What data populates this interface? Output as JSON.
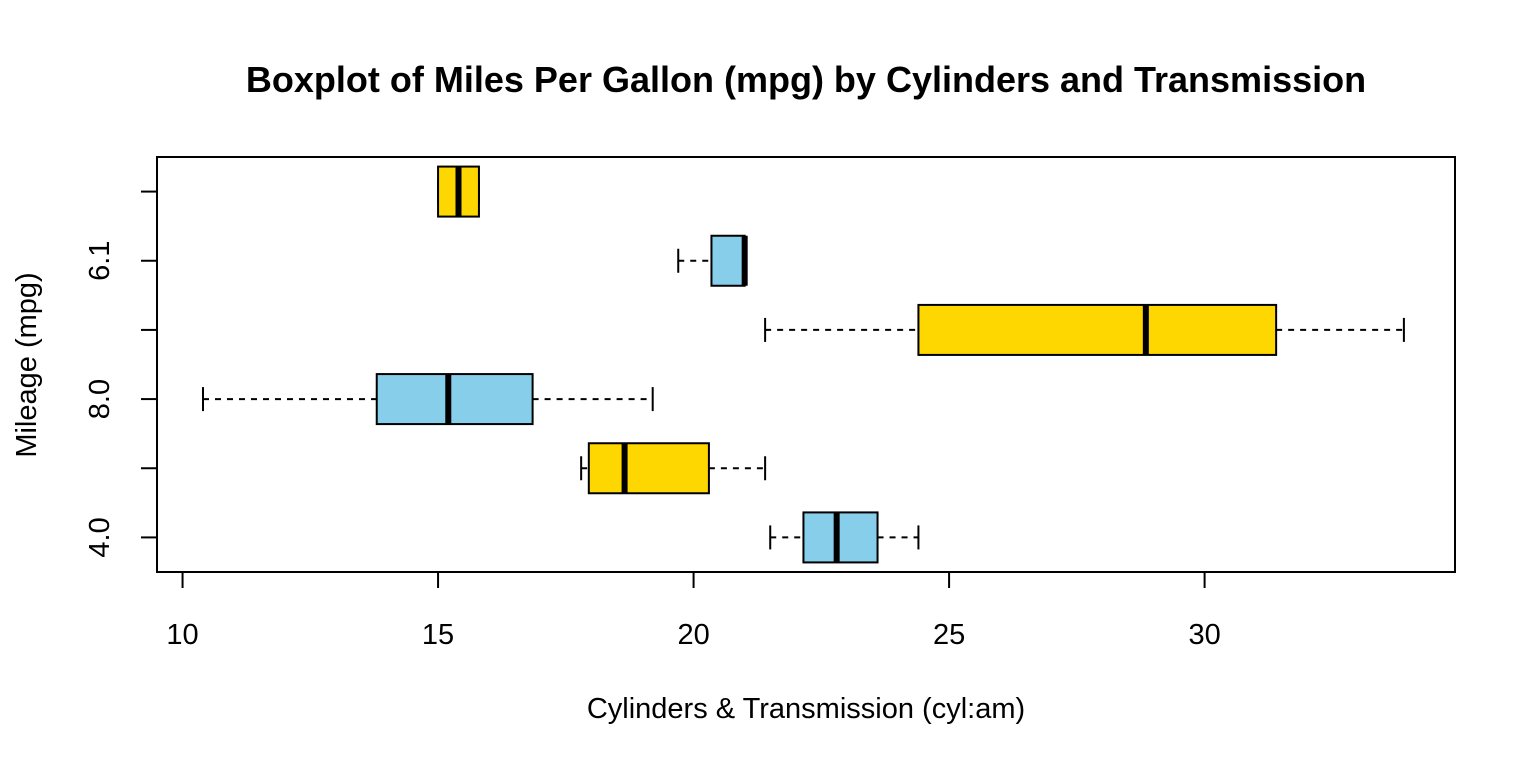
{
  "chart_data": {
    "type": "boxplot",
    "orientation": "horizontal",
    "title": "Boxplot of Miles Per Gallon (mpg) by Cylinders and Transmission",
    "xlabel": "Cylinders & Transmission (cyl:am)",
    "ylabel": "Mileage (mpg)",
    "xlim": [
      9.5,
      34.9
    ],
    "x_ticks": [
      "10",
      "15",
      "20",
      "25",
      "30"
    ],
    "y_tick_labels": [
      "4.0",
      "",
      "8.0",
      "",
      "6.1",
      ""
    ],
    "grid": false,
    "colors": {
      "blue": "#87CEEB",
      "gold": "#FFD700"
    },
    "boxes": [
      {
        "position": 1,
        "color": "#87CEEB",
        "whisker_low": 21.5,
        "q1": 22.15,
        "median": 22.8,
        "q3": 23.6,
        "whisker_high": 24.4
      },
      {
        "position": 2,
        "color": "#FFD700",
        "whisker_low": 17.8,
        "q1": 17.95,
        "median": 18.65,
        "q3": 20.3,
        "whisker_high": 21.4
      },
      {
        "position": 3,
        "color": "#87CEEB",
        "whisker_low": 10.4,
        "q1": 13.8,
        "median": 15.2,
        "q3": 16.85,
        "whisker_high": 19.2
      },
      {
        "position": 4,
        "color": "#FFD700",
        "whisker_low": 21.4,
        "q1": 24.4,
        "median": 28.85,
        "q3": 31.4,
        "whisker_high": 33.9
      },
      {
        "position": 5,
        "color": "#87CEEB",
        "whisker_low": 19.7,
        "q1": 20.35,
        "median": 21.0,
        "q3": 21.0,
        "whisker_high": 21.0
      },
      {
        "position": 6,
        "color": "#FFD700",
        "whisker_low": 15.0,
        "q1": 15.0,
        "median": 15.4,
        "q3": 15.8,
        "whisker_high": 15.8
      }
    ]
  }
}
